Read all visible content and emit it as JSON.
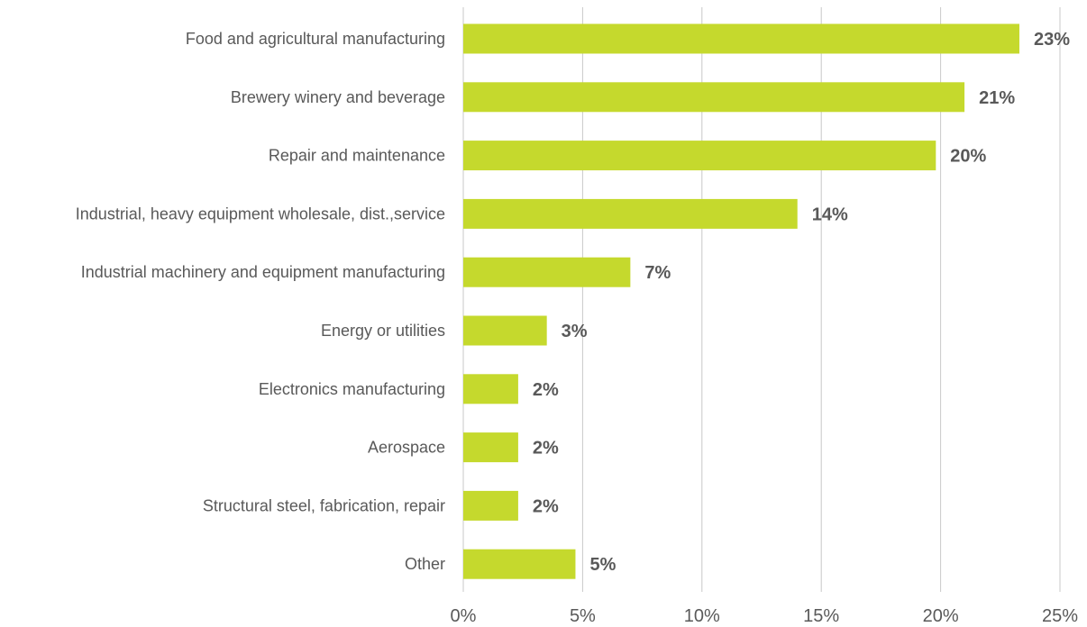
{
  "chart_data": {
    "type": "bar",
    "orientation": "horizontal",
    "title": "",
    "xlabel": "",
    "ylabel": "",
    "categories": [
      "Food and agricultural manufacturing",
      "Brewery winery and beverage",
      "Repair and maintenance",
      "Industrial, heavy equipment wholesale, dist.,service",
      "Industrial machinery and equipment manufacturing",
      "Energy or utilities",
      "Electronics manufacturing",
      "Aerospace",
      "Structural steel, fabrication, repair",
      "Other"
    ],
    "values": [
      23.3,
      21,
      19.8,
      14,
      7,
      3.5,
      2.3,
      2.3,
      2.3,
      4.7
    ],
    "data_labels": [
      "23%",
      "21%",
      "20%",
      "14%",
      "7%",
      "3%",
      "2%",
      "2%",
      "2%",
      "5%"
    ],
    "xlim": [
      0,
      25
    ],
    "x_ticks": [
      0,
      5,
      10,
      15,
      20,
      25
    ],
    "x_tick_labels": [
      "0%",
      "5%",
      "10%",
      "15%",
      "20%",
      "25%"
    ],
    "grid": "vertical",
    "legend": "none",
    "bar_color": "#c5d92d",
    "text_color": "#595959",
    "grid_color": "#c8c8c8"
  }
}
